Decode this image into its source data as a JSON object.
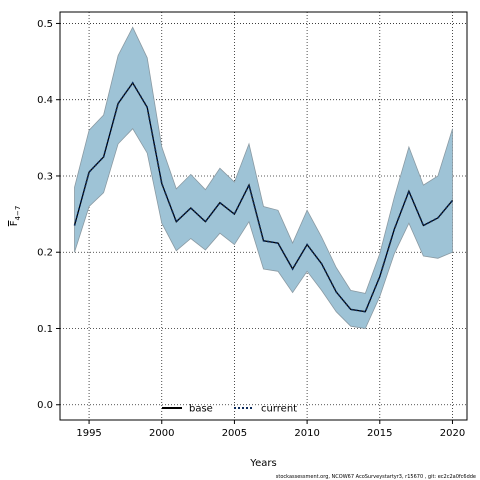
{
  "chart_data": {
    "type": "line",
    "xlabel": "Years",
    "ylabel": "F̄ 4−7",
    "ylabel_main": "F",
    "ylabel_sub": "4−7",
    "xlim": [
      1993,
      2021
    ],
    "ylim": [
      -0.02,
      0.515
    ],
    "xticks": [
      1995,
      2000,
      2005,
      2010,
      2015,
      2020
    ],
    "yticks": [
      0.0,
      0.1,
      0.2,
      0.3,
      0.4,
      0.5
    ],
    "grid": true,
    "legend_position": "bottom-center",
    "x": [
      1994,
      1995,
      1996,
      1997,
      1998,
      1999,
      2000,
      2001,
      2002,
      2003,
      2004,
      2005,
      2006,
      2007,
      2008,
      2009,
      2010,
      2011,
      2012,
      2013,
      2014,
      2015,
      2016,
      2017,
      2018,
      2019,
      2020
    ],
    "series": [
      {
        "name": "current",
        "values": [
          0.235,
          0.305,
          0.325,
          0.395,
          0.422,
          0.39,
          0.29,
          0.24,
          0.258,
          0.24,
          0.265,
          0.25,
          0.288,
          0.215,
          0.212,
          0.178,
          0.21,
          0.185,
          0.148,
          0.125,
          0.122,
          0.168,
          0.23,
          0.28,
          0.235,
          0.245,
          0.268
        ],
        "lower": [
          0.2,
          0.26,
          0.278,
          0.342,
          0.362,
          0.33,
          0.238,
          0.202,
          0.218,
          0.203,
          0.225,
          0.21,
          0.24,
          0.178,
          0.175,
          0.147,
          0.175,
          0.15,
          0.122,
          0.103,
          0.1,
          0.142,
          0.198,
          0.238,
          0.195,
          0.192,
          0.2
        ],
        "upper": [
          0.285,
          0.36,
          0.38,
          0.458,
          0.495,
          0.455,
          0.338,
          0.283,
          0.302,
          0.282,
          0.31,
          0.292,
          0.342,
          0.26,
          0.255,
          0.212,
          0.255,
          0.22,
          0.18,
          0.15,
          0.146,
          0.198,
          0.272,
          0.338,
          0.288,
          0.3,
          0.362
        ]
      }
    ],
    "legend": [
      {
        "label": "base",
        "style": "solid"
      },
      {
        "label": "current",
        "style": "dotted"
      }
    ],
    "footer": "stockassessment.org, NCOW67 AcoSurveystartyr3, r15670 , git: ec2c2a0fc6dde"
  },
  "colors": {
    "band": "#9ec3d6",
    "band_edge": "#8a9aa3",
    "current_line": "#0b2a5b",
    "base_line": "#000000",
    "grid": "#222222"
  }
}
